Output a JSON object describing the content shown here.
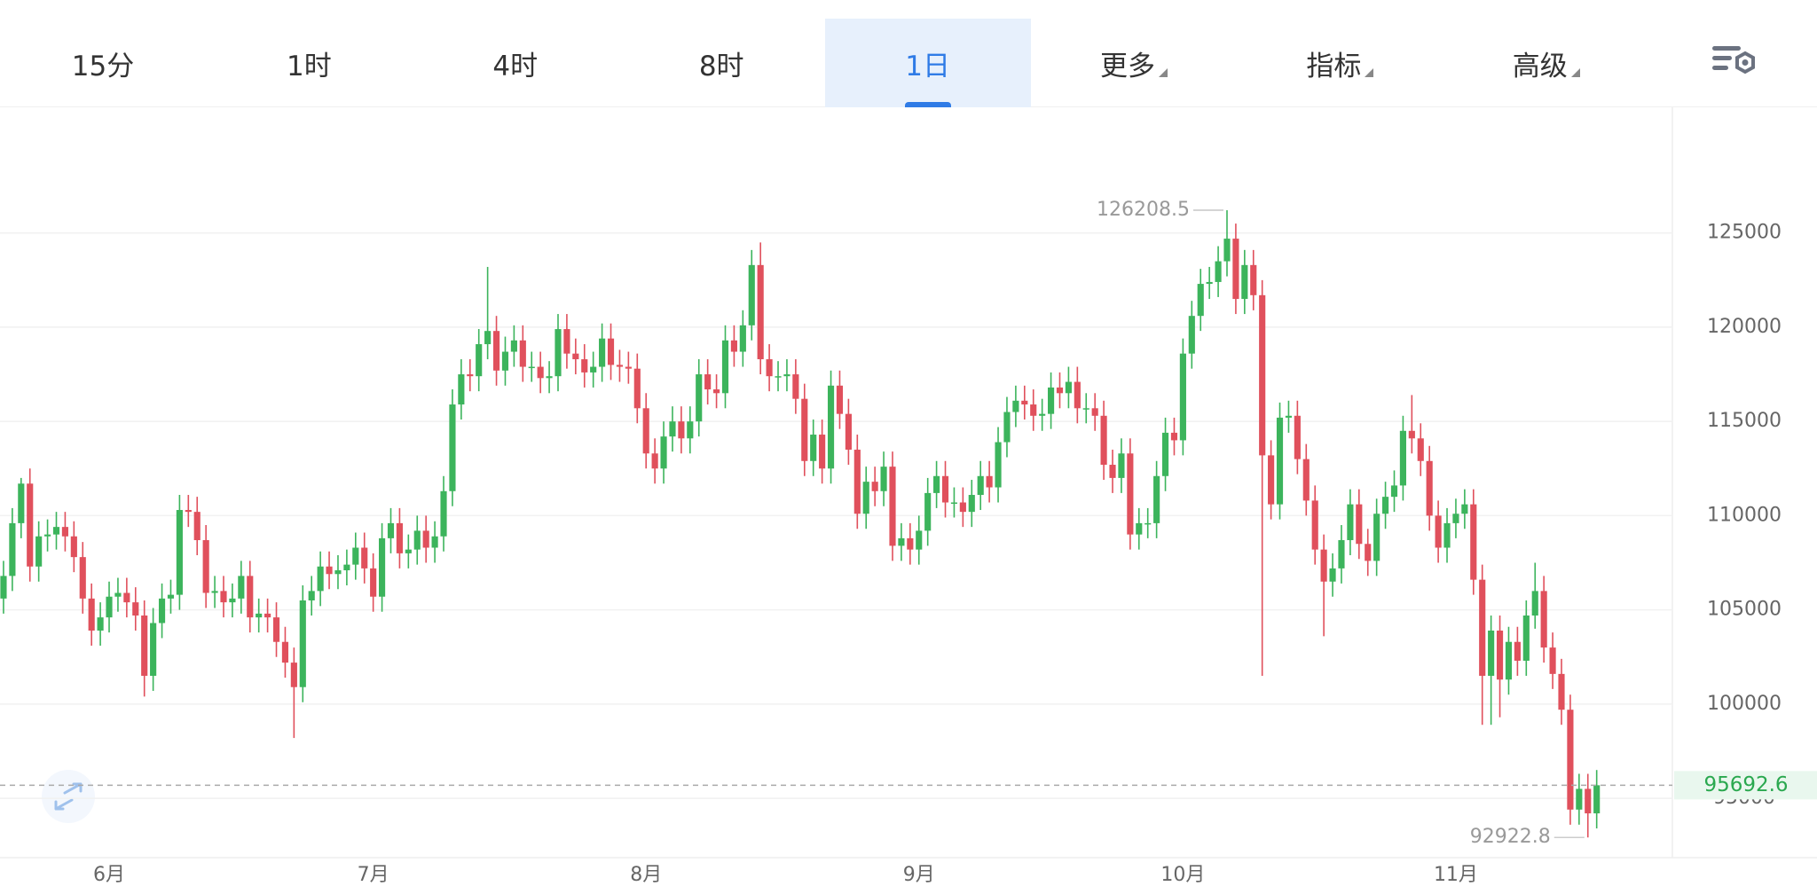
{
  "tabs": {
    "items": [
      "15分",
      "1时",
      "4时",
      "8时",
      "1日",
      "更多",
      "指标",
      "高级"
    ],
    "active": 4,
    "dropdowns": [
      5,
      6,
      7
    ]
  },
  "chart_data": {
    "type": "candlestick",
    "up_color": "#3cb45c",
    "down_color": "#e0505c",
    "grid": true,
    "xlim": [
      -0.4,
      189.6
    ],
    "ylim": [
      91850,
      131670
    ],
    "yticks": [
      95000,
      100000,
      105000,
      110000,
      115000,
      120000,
      125000
    ],
    "xticks": [
      {
        "value": 12,
        "label": "6月"
      },
      {
        "value": 42,
        "label": "7月"
      },
      {
        "value": 73,
        "label": "8月"
      },
      {
        "value": 104,
        "label": "9月"
      },
      {
        "value": 134,
        "label": "10月"
      },
      {
        "value": 165,
        "label": "11月"
      }
    ],
    "open": [
      105600,
      106800,
      109600,
      111700,
      107300,
      108900,
      109000,
      109400,
      108900,
      107800,
      105600,
      103900,
      104600,
      105700,
      105900,
      105400,
      104700,
      101500,
      104300,
      105600,
      105800,
      110300,
      110200,
      108700,
      105900,
      106000,
      105400,
      105600,
      106800,
      104600,
      104800,
      104600,
      103300,
      102200,
      100900,
      105500,
      106000,
      107300,
      106900,
      107100,
      107400,
      108300,
      107200,
      105700,
      108800,
      109600,
      108000,
      108200,
      109200,
      108300,
      108900,
      111300,
      115900,
      117500,
      117400,
      119100,
      119800,
      117700,
      118700,
      119300,
      117900,
      117900,
      117300,
      117400,
      119900,
      118600,
      118300,
      117600,
      117900,
      119400,
      118000,
      117900,
      117800,
      115700,
      113300,
      112500,
      114200,
      115000,
      114100,
      115000,
      117500,
      116700,
      116500,
      119300,
      118700,
      120100,
      123300,
      118300,
      117400,
      117400,
      117500,
      116200,
      112900,
      114300,
      112500,
      116900,
      115400,
      113500,
      110100,
      111800,
      111300,
      112600,
      108400,
      108800,
      108200,
      109200,
      111200,
      112100,
      110700,
      110700,
      110200,
      111100,
      112100,
      111500,
      113900,
      115500,
      116100,
      115900,
      115300,
      115400,
      116800,
      116500,
      117100,
      115700,
      115700,
      115300,
      112700,
      112000,
      113300,
      109000,
      109600,
      109600,
      112100,
      114400,
      114000,
      118600,
      120600,
      122300,
      122400,
      123500,
      124700,
      121500,
      123300,
      121700,
      113200,
      110600,
      115200,
      115300,
      113000,
      110800,
      108200,
      106500,
      107200,
      108700,
      110600,
      108500,
      107600,
      110100,
      111000,
      111600,
      114500,
      114100,
      112900,
      110000,
      108300,
      109600,
      110100,
      110600,
      106600,
      101500,
      103900,
      101300,
      103300,
      102300,
      104700,
      106000,
      103000,
      101600,
      99700,
      94400,
      95500,
      94200
    ],
    "close": [
      106800,
      109600,
      111700,
      107300,
      108900,
      109000,
      109400,
      108900,
      107800,
      105600,
      103900,
      104600,
      105700,
      105900,
      105400,
      104700,
      101500,
      104300,
      105600,
      105800,
      110300,
      110200,
      108700,
      105900,
      106000,
      105400,
      105600,
      106800,
      104600,
      104800,
      104600,
      103300,
      102200,
      100900,
      105500,
      106000,
      107300,
      106900,
      107100,
      107400,
      108300,
      107200,
      105700,
      108800,
      109600,
      108000,
      108200,
      109200,
      108300,
      108900,
      111300,
      115900,
      117500,
      117400,
      119100,
      119800,
      117700,
      118700,
      119300,
      117900,
      117900,
      117300,
      117400,
      119900,
      118600,
      118300,
      117600,
      117900,
      119400,
      118000,
      117900,
      117800,
      115700,
      113300,
      112500,
      114200,
      115000,
      114100,
      115000,
      117500,
      116700,
      116500,
      119300,
      118700,
      120100,
      123300,
      118300,
      117400,
      117400,
      117500,
      116200,
      112900,
      114300,
      112500,
      116900,
      115400,
      113500,
      110100,
      111800,
      111300,
      112600,
      108400,
      108800,
      108200,
      109200,
      111200,
      112100,
      110700,
      110700,
      110200,
      111100,
      112100,
      111500,
      113900,
      115500,
      116100,
      115900,
      115300,
      115400,
      116800,
      116500,
      117100,
      115700,
      115700,
      115300,
      112700,
      112000,
      113300,
      109000,
      109600,
      109600,
      112100,
      114400,
      114000,
      118600,
      120600,
      122300,
      122400,
      123500,
      124700,
      121500,
      123300,
      121700,
      113200,
      110600,
      115200,
      115300,
      113000,
      110800,
      108200,
      106500,
      107200,
      108700,
      110600,
      108500,
      107600,
      110100,
      111000,
      111600,
      114500,
      114100,
      112900,
      110000,
      108300,
      109600,
      110100,
      110600,
      106600,
      101500,
      103900,
      101300,
      103300,
      102300,
      104700,
      106000,
      103000,
      101600,
      99700,
      94400,
      95500,
      94200,
      95692.6
    ],
    "high": [
      107600,
      110400,
      112000,
      112500,
      109700,
      109800,
      110200,
      110200,
      109700,
      108600,
      106400,
      105400,
      106500,
      106700,
      106700,
      106200,
      105500,
      105100,
      106400,
      106600,
      111100,
      111100,
      111000,
      109500,
      106800,
      106800,
      106400,
      107600,
      107600,
      105600,
      105600,
      105400,
      104100,
      103000,
      106300,
      106800,
      108100,
      108100,
      107900,
      108200,
      109100,
      109100,
      108000,
      109600,
      110400,
      110400,
      109000,
      110000,
      110000,
      109700,
      112100,
      116700,
      118300,
      118300,
      119900,
      123200,
      120600,
      119500,
      120100,
      120100,
      118700,
      118700,
      118200,
      120700,
      120700,
      119400,
      119100,
      118700,
      120200,
      120200,
      118800,
      118700,
      118600,
      116500,
      114100,
      115000,
      115800,
      115800,
      115800,
      118300,
      118300,
      117500,
      120100,
      120100,
      120900,
      124100,
      124500,
      119100,
      118200,
      118300,
      118300,
      117000,
      115100,
      115100,
      117700,
      117700,
      116200,
      114300,
      112600,
      112600,
      113400,
      113400,
      109600,
      109600,
      110000,
      112000,
      112900,
      112900,
      111500,
      111500,
      111900,
      112900,
      112900,
      114700,
      116300,
      116900,
      116900,
      116700,
      116200,
      117600,
      117600,
      117900,
      117900,
      116500,
      116500,
      116100,
      113500,
      114100,
      114100,
      110400,
      110400,
      112900,
      115200,
      115200,
      119400,
      121400,
      123100,
      123200,
      124300,
      126208.5,
      125500,
      124100,
      124100,
      122500,
      114000,
      116000,
      116100,
      116100,
      113800,
      111600,
      109000,
      108000,
      109500,
      111400,
      111400,
      109300,
      110900,
      111800,
      112400,
      115300,
      116400,
      114900,
      113700,
      110800,
      110400,
      110900,
      111400,
      111400,
      107400,
      104700,
      104700,
      104100,
      104100,
      105500,
      107500,
      106800,
      103800,
      102400,
      100500,
      96300,
      96300,
      96500
    ],
    "low": [
      104800,
      106000,
      108800,
      106500,
      106500,
      108100,
      108200,
      108100,
      107000,
      104800,
      103100,
      103100,
      103800,
      104900,
      104600,
      103900,
      100400,
      100700,
      103500,
      104800,
      105000,
      109400,
      107900,
      105100,
      105100,
      104600,
      104600,
      104800,
      103800,
      103800,
      103800,
      102500,
      101400,
      98200,
      100100,
      104700,
      105200,
      106100,
      106100,
      106300,
      106600,
      106400,
      104900,
      104900,
      108000,
      107200,
      107200,
      107400,
      107500,
      107500,
      108100,
      110500,
      115100,
      116600,
      116600,
      118300,
      116900,
      116900,
      117900,
      117100,
      117100,
      116500,
      116500,
      116600,
      117800,
      117500,
      116800,
      116800,
      117100,
      117200,
      117100,
      117000,
      114900,
      112500,
      111700,
      111700,
      113400,
      113300,
      113300,
      114200,
      115900,
      115700,
      115700,
      117900,
      117900,
      119300,
      117500,
      116600,
      116600,
      116600,
      115400,
      112100,
      112100,
      111700,
      111700,
      114600,
      112700,
      109300,
      109300,
      110500,
      110500,
      107600,
      107600,
      107400,
      107400,
      108400,
      110400,
      109900,
      109900,
      109400,
      109400,
      110300,
      110700,
      110700,
      113100,
      114700,
      115100,
      114500,
      114500,
      114600,
      115700,
      115700,
      114900,
      114900,
      114500,
      111900,
      111200,
      111200,
      108200,
      108200,
      108800,
      108800,
      111300,
      113200,
      113200,
      117800,
      119800,
      121500,
      121600,
      122700,
      120700,
      120700,
      120900,
      101500,
      109800,
      109800,
      114400,
      112200,
      110000,
      107400,
      103600,
      105700,
      106400,
      107900,
      107700,
      106800,
      106800,
      109300,
      110200,
      110800,
      113300,
      112100,
      109200,
      107500,
      107500,
      108800,
      109300,
      105800,
      98900,
      98900,
      99300,
      100500,
      101500,
      101500,
      104000,
      102200,
      100800,
      98900,
      93600,
      93600,
      92922.8,
      93400
    ]
  }
}
